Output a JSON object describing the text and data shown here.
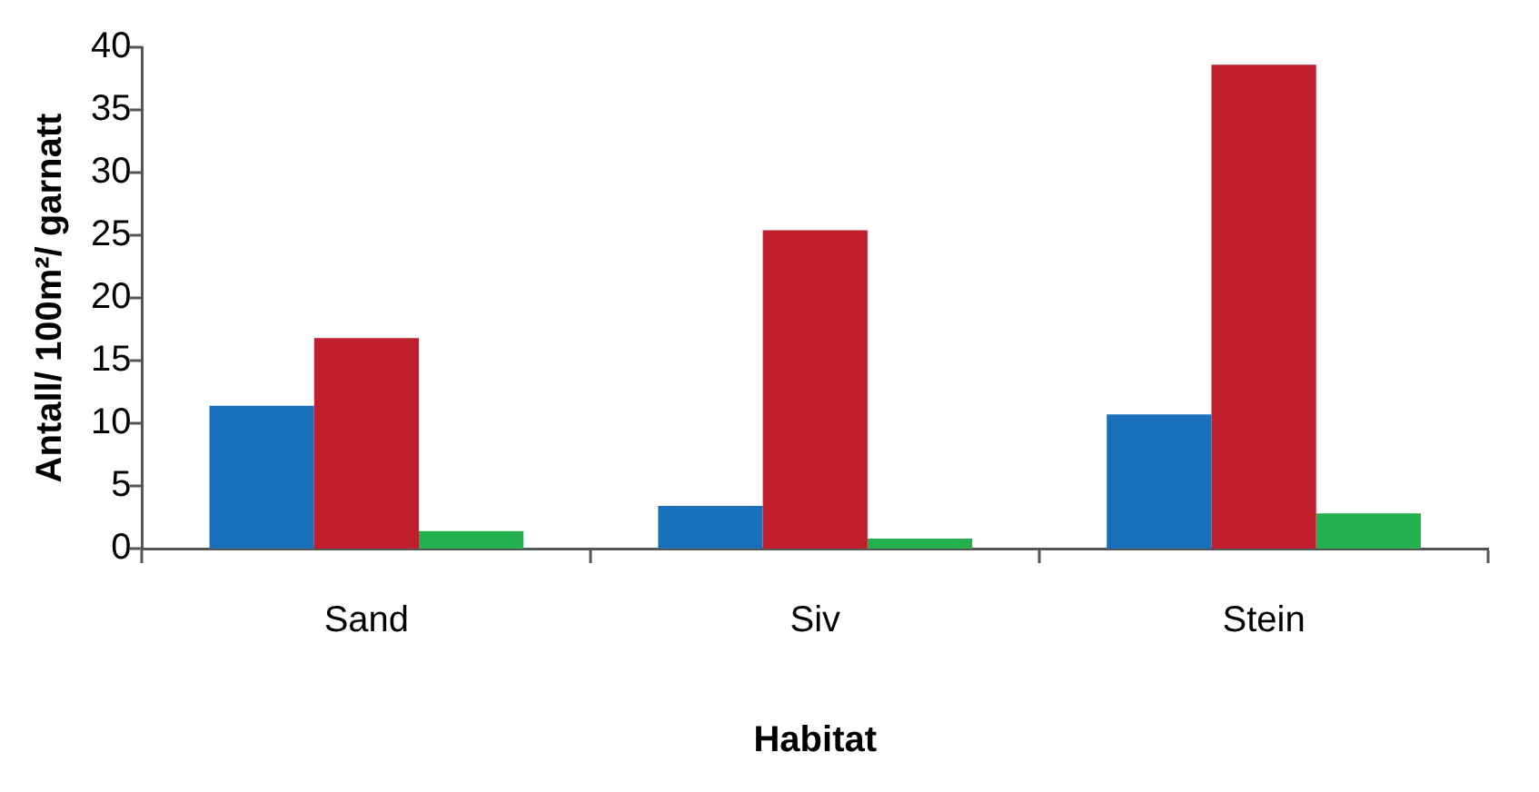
{
  "chart_data": {
    "type": "bar",
    "xlabel": "Habitat",
    "ylabel": "Antall/ 100m²/ garnatt",
    "categories": [
      "Sand",
      "Siv",
      "Stein"
    ],
    "series": [
      {
        "color": "#1a6fba",
        "values": [
          11.4,
          3.4,
          10.7
        ]
      },
      {
        "color": "#be1e2d",
        "values": [
          16.8,
          25.4,
          38.6
        ]
      },
      {
        "color": "#22b14c",
        "values": [
          1.4,
          0.8,
          2.8
        ]
      }
    ],
    "ylim": [
      0,
      40
    ],
    "yticks": [
      0,
      5,
      10,
      15,
      20,
      25,
      30,
      35,
      40
    ],
    "grid": false,
    "legend": false
  }
}
